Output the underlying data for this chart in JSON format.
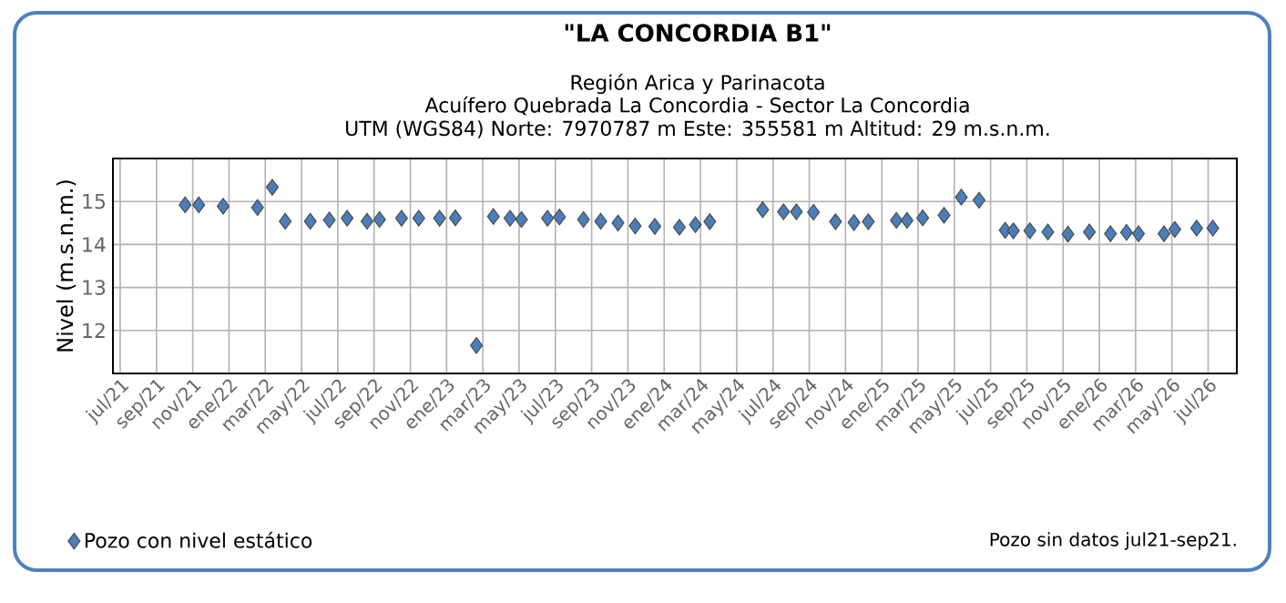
{
  "chart_data": {
    "type": "scatter",
    "title": "\"LA CONCORDIA B1\"",
    "subtitle": "Región Arica y Parinacota",
    "annotations": [
      "Acuífero Quebrada La Concordia - Sector La Concordia",
      "UTM (WGS84) Norte: 7970787 m Este: 355581 m   Altitud: 29 m.s.n.m.",
      "Pozo sin datos jul21-sep21."
    ],
    "ylabel": "Nivel (m.s.n.m.)",
    "x": [
      "2021-10-19",
      "2021-11-11",
      "2021-12-22",
      "2022-02-17",
      "2022-03-13",
      "2022-04-04",
      "2022-05-16",
      "2022-06-17",
      "2022-07-17",
      "2022-08-20",
      "2022-09-10",
      "2022-10-17",
      "2022-11-15",
      "2022-12-20",
      "2023-01-16",
      "2023-02-19",
      "2023-03-19",
      "2023-04-16",
      "2023-05-05",
      "2023-06-18",
      "2023-07-08",
      "2023-08-18",
      "2023-09-16",
      "2023-10-15",
      "2023-11-13",
      "2023-12-16",
      "2024-01-27",
      "2024-02-22",
      "2024-03-17",
      "2024-06-14",
      "2024-07-19",
      "2024-08-10",
      "2024-09-08",
      "2024-10-15",
      "2024-11-15",
      "2024-12-09",
      "2025-01-26",
      "2025-02-12",
      "2025-03-09",
      "2025-04-14",
      "2025-05-13",
      "2025-06-12",
      "2025-07-26",
      "2025-08-09",
      "2025-09-06",
      "2025-10-06",
      "2025-11-09",
      "2025-12-15",
      "2026-01-20",
      "2026-02-15",
      "2026-03-06",
      "2026-04-18",
      "2026-05-06",
      "2026-06-12",
      "2026-07-09"
    ],
    "series": [
      {
        "name": "Pozo con nivel estático",
        "color": "#4a7ebb",
        "values": [
          14.92,
          14.92,
          14.89,
          14.86,
          15.33,
          14.54,
          14.54,
          14.57,
          14.61,
          14.54,
          14.58,
          14.61,
          14.61,
          14.61,
          14.62,
          11.65,
          14.65,
          14.61,
          14.58,
          14.61,
          14.64,
          14.58,
          14.54,
          14.5,
          14.43,
          14.42,
          14.4,
          14.46,
          14.53,
          14.81,
          14.76,
          14.76,
          14.75,
          14.53,
          14.51,
          14.53,
          14.56,
          14.56,
          14.62,
          14.68,
          15.1,
          15.03,
          14.33,
          14.32,
          14.32,
          14.29,
          14.24,
          14.29,
          14.25,
          14.28,
          14.25,
          14.25,
          14.35,
          14.38,
          14.38
        ]
      }
    ],
    "xlim": [
      "2021-06-19",
      "2026-08-19"
    ],
    "ylim": [
      11,
      16
    ],
    "yticks": [
      12,
      13,
      14,
      15
    ],
    "xticks": [
      {
        "value": "2021-07",
        "label": "jul/21"
      },
      {
        "value": "2021-09",
        "label": "sep/21"
      },
      {
        "value": "2021-11",
        "label": "nov/21"
      },
      {
        "value": "2022-01",
        "label": "ene/22"
      },
      {
        "value": "2022-03",
        "label": "mar/22"
      },
      {
        "value": "2022-05",
        "label": "may/22"
      },
      {
        "value": "2022-07",
        "label": "jul/22"
      },
      {
        "value": "2022-09",
        "label": "sep/22"
      },
      {
        "value": "2022-11",
        "label": "nov/22"
      },
      {
        "value": "2023-01",
        "label": "ene/23"
      },
      {
        "value": "2023-03",
        "label": "mar/23"
      },
      {
        "value": "2023-05",
        "label": "may/23"
      },
      {
        "value": "2023-07",
        "label": "jul/23"
      },
      {
        "value": "2023-09",
        "label": "sep/23"
      },
      {
        "value": "2023-11",
        "label": "nov/23"
      },
      {
        "value": "2024-01",
        "label": "ene/24"
      },
      {
        "value": "2024-03",
        "label": "mar/24"
      },
      {
        "value": "2024-05",
        "label": "may/24"
      },
      {
        "value": "2024-07",
        "label": "jul/24"
      },
      {
        "value": "2024-09",
        "label": "sep/24"
      },
      {
        "value": "2024-11",
        "label": "nov/24"
      },
      {
        "value": "2025-01",
        "label": "ene/25"
      },
      {
        "value": "2025-03",
        "label": "mar/25"
      },
      {
        "value": "2025-05",
        "label": "may/25"
      },
      {
        "value": "2025-07",
        "label": "jul/25"
      },
      {
        "value": "2025-09",
        "label": "sep/25"
      },
      {
        "value": "2025-11",
        "label": "nov/25"
      },
      {
        "value": "2026-01",
        "label": "ene/26"
      },
      {
        "value": "2026-03",
        "label": "mar/26"
      },
      {
        "value": "2026-05",
        "label": "may/26"
      },
      {
        "value": "2026-07",
        "label": "jul/26"
      }
    ],
    "grid": true,
    "legend": "bottom left",
    "marker": "diamond"
  }
}
